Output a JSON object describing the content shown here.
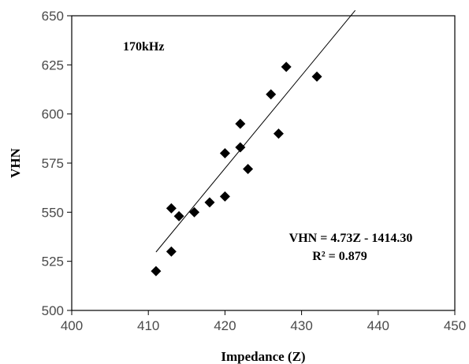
{
  "chart_data": {
    "type": "scatter",
    "title": "",
    "xlabel": "Impedance (Z)",
    "ylabel": "VHN",
    "xlim": [
      400,
      450
    ],
    "ylim": [
      500,
      650
    ],
    "xticks": [
      400,
      410,
      420,
      430,
      440,
      450
    ],
    "yticks": [
      500,
      525,
      550,
      575,
      600,
      625,
      650
    ],
    "grid": false,
    "legend": "none",
    "marker": "diamond",
    "marker_color": "#000000",
    "annotations": {
      "frequency": "170kHz",
      "equation": "VHN = 4.73Z - 1414.30",
      "r_squared": "R² = 0.879"
    },
    "series": [
      {
        "x": [
          411,
          413,
          413,
          414,
          416,
          418,
          420,
          420,
          422,
          422,
          423,
          426,
          427,
          428,
          432
        ],
        "y": [
          520,
          530,
          552,
          548,
          550,
          555,
          558,
          580,
          595,
          583,
          572,
          610,
          590,
          624,
          619
        ]
      }
    ],
    "trendline": {
      "slope": 4.73,
      "intercept": -1414.3,
      "x_range": [
        411,
        437
      ]
    }
  }
}
